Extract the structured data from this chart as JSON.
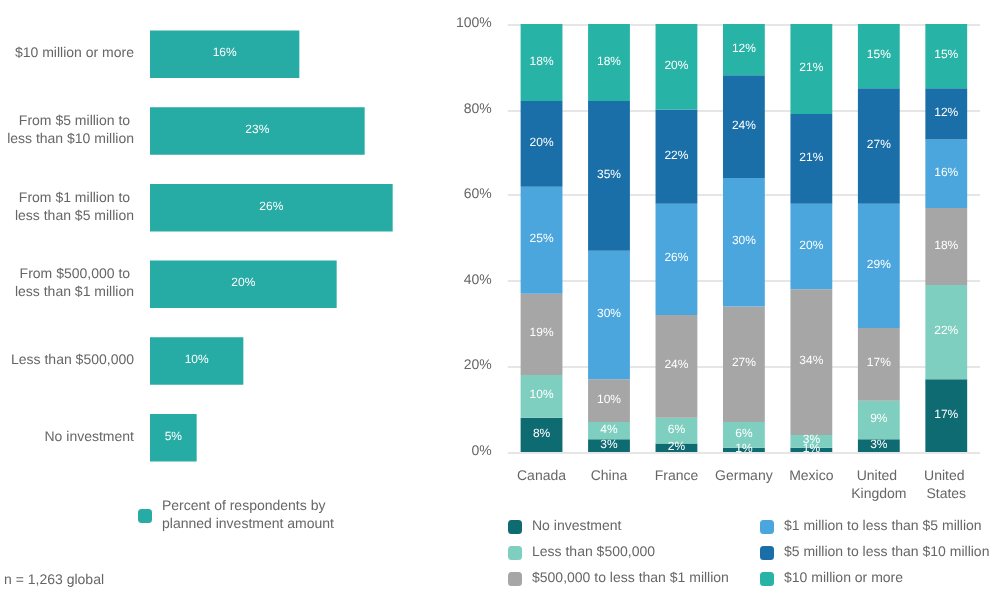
{
  "chart_data": [
    {
      "type": "bar",
      "orientation": "horizontal",
      "categories": [
        "$10 million or more",
        "From $5 million to less than $10 million",
        "From $1 million to less than $5 million",
        "From $500,000 to less than $1 million",
        "Less than $500,000",
        "No investment"
      ],
      "series": [
        {
          "name": "Percent of respondents by planned investment amount",
          "color": "#27aba5",
          "values": [
            16,
            23,
            26,
            20,
            10,
            5
          ],
          "value_labels": [
            "16%",
            "23%",
            "26%",
            "20%",
            "10%",
            "5%"
          ]
        }
      ],
      "legend": "bottom",
      "annotations": [
        "n = 1,263 global"
      ]
    },
    {
      "type": "bar",
      "stacked": true,
      "categories": [
        "Canada",
        "China",
        "France",
        "Germany",
        "Mexico",
        "United Kingdom",
        "United States"
      ],
      "series": [
        {
          "name": "No investment",
          "color": "#0f6b72",
          "values": [
            8,
            3,
            2,
            1,
            1,
            3,
            17
          ],
          "value_labels": [
            "8%",
            "3%",
            "2%",
            "1%",
            "1%",
            "3%",
            "17%"
          ]
        },
        {
          "name": "Less than $500,000",
          "color": "#7fcfc0",
          "values": [
            10,
            4,
            6,
            6,
            3,
            9,
            22
          ],
          "value_labels": [
            "10%",
            "4%",
            "6%",
            "6%",
            "3%",
            "9%",
            "22%"
          ]
        },
        {
          "name": "$500,000 to less than $1 million",
          "color": "#a6a6a6",
          "values": [
            19,
            10,
            24,
            27,
            34,
            17,
            18
          ],
          "value_labels": [
            "19%",
            "10%",
            "24%",
            "27%",
            "34%",
            "17%",
            "18%"
          ]
        },
        {
          "name": "$1 million to less than $5 million",
          "color": "#4aa6dc",
          "values": [
            25,
            30,
            26,
            30,
            20,
            29,
            16
          ],
          "value_labels": [
            "25%",
            "30%",
            "26%",
            "30%",
            "20%",
            "29%",
            "16%"
          ]
        },
        {
          "name": "$5 million to less than $10 million",
          "color": "#1a6fa8",
          "values": [
            20,
            35,
            22,
            24,
            21,
            27,
            12
          ],
          "value_labels": [
            "20%",
            "35%",
            "22%",
            "24%",
            "21%",
            "27%",
            "12%"
          ]
        },
        {
          "name": "$10 million or more",
          "color": "#27b3a5",
          "values": [
            18,
            18,
            20,
            12,
            21,
            15,
            15
          ],
          "value_labels": [
            "18%",
            "18%",
            "20%",
            "12%",
            "21%",
            "15%",
            "15%"
          ]
        }
      ],
      "ylim": [
        0,
        100
      ],
      "yticks": [
        {
          "value": 0,
          "label": "0%"
        },
        {
          "value": 20,
          "label": "20%"
        },
        {
          "value": 40,
          "label": "40%"
        },
        {
          "value": 60,
          "label": "60%"
        },
        {
          "value": 80,
          "label": "80%"
        },
        {
          "value": 100,
          "label": "100%"
        }
      ],
      "grid": "y",
      "legend": "bottom"
    }
  ]
}
